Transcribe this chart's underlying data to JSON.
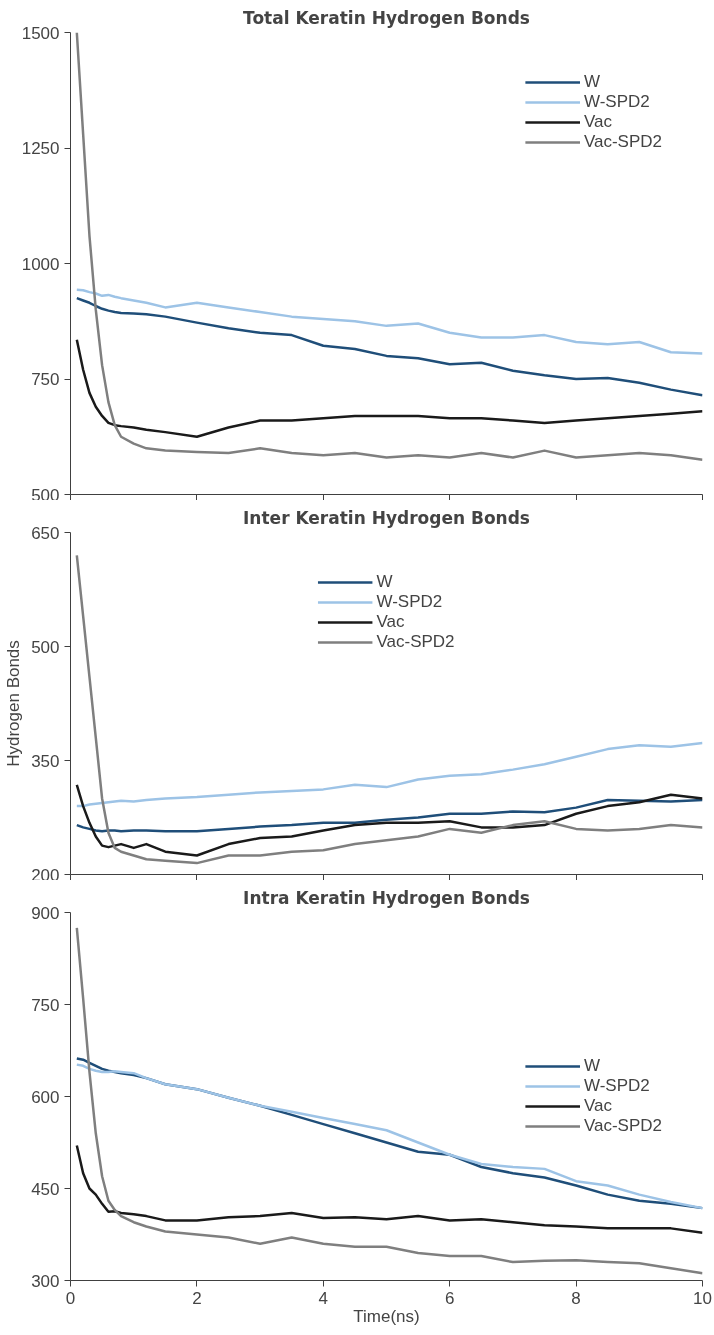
{
  "chart_data": [
    {
      "type": "line",
      "title": "Total Keratin Hydrogen Bonds",
      "x": [
        0.1,
        0.2,
        0.3,
        0.4,
        0.5,
        0.6,
        0.7,
        0.8,
        1.0,
        1.2,
        1.5,
        2,
        2.5,
        3,
        3.5,
        4,
        4.5,
        5,
        5.5,
        6,
        6.5,
        7,
        7.5,
        8,
        8.5,
        9,
        9.5,
        10
      ],
      "xlim": [
        0,
        10
      ],
      "xticks": [
        0,
        2,
        4,
        6,
        8,
        10
      ],
      "ylim": [
        500,
        1500
      ],
      "yticks": [
        500,
        750,
        1000,
        1250,
        1500
      ],
      "tick_labels": "y",
      "grid": false,
      "legend": "top right",
      "line_style": "solid",
      "marker": "none",
      "series": [
        {
          "name": "W",
          "color": "#1f4e79",
          "values": [
            925,
            920,
            915,
            908,
            902,
            898,
            895,
            893,
            892,
            890,
            885,
            872,
            860,
            850,
            845,
            822,
            815,
            800,
            795,
            782,
            785,
            768,
            758,
            750,
            752,
            742,
            727,
            715
          ]
        },
        {
          "name": "W-SPD2",
          "color": "#9dc3e6",
          "values": [
            943,
            942,
            938,
            935,
            930,
            932,
            928,
            925,
            920,
            915,
            905,
            915,
            905,
            895,
            885,
            880,
            875,
            865,
            870,
            850,
            840,
            840,
            845,
            830,
            825,
            830,
            808,
            805
          ]
        },
        {
          "name": "Vac",
          "color": "#1a1a1a",
          "values": [
            835,
            770,
            720,
            690,
            670,
            655,
            650,
            648,
            645,
            640,
            635,
            625,
            645,
            660,
            660,
            665,
            670,
            670,
            670,
            665,
            665,
            660,
            655,
            660,
            665,
            670,
            675,
            680
          ]
        },
        {
          "name": "Vac-SPD2",
          "color": "#7f7f7f",
          "values": [
            1500,
            1280,
            1060,
            900,
            780,
            700,
            650,
            625,
            610,
            600,
            595,
            592,
            590,
            600,
            590,
            585,
            590,
            580,
            585,
            580,
            590,
            580,
            595,
            580,
            585,
            590,
            585,
            575
          ]
        }
      ]
    },
    {
      "type": "line",
      "title": "Inter Keratin Hydrogen Bonds",
      "ylabel": "Hydrogen Bonds",
      "x": [
        0.1,
        0.2,
        0.3,
        0.4,
        0.5,
        0.6,
        0.7,
        0.8,
        1.0,
        1.2,
        1.5,
        2,
        2.5,
        3,
        3.5,
        4,
        4.5,
        5,
        5.5,
        6,
        6.5,
        7,
        7.5,
        8,
        8.5,
        9,
        9.5,
        10
      ],
      "xlim": [
        0,
        10
      ],
      "xticks": [
        0,
        2,
        4,
        6,
        8,
        10
      ],
      "ylim": [
        200,
        650
      ],
      "yticks": [
        200,
        350,
        500,
        650
      ],
      "tick_labels": "y",
      "grid": false,
      "legend": "top",
      "line_style": "solid",
      "marker": "none",
      "series": [
        {
          "name": "W",
          "color": "#1f4e79",
          "values": [
            265,
            262,
            260,
            258,
            257,
            258,
            258,
            257,
            258,
            258,
            257,
            257,
            260,
            263,
            265,
            268,
            268,
            272,
            275,
            280,
            280,
            283,
            282,
            288,
            298,
            297,
            296,
            298
          ]
        },
        {
          "name": "W-SPD2",
          "color": "#9dc3e6",
          "values": [
            290,
            290,
            292,
            293,
            294,
            295,
            296,
            297,
            296,
            298,
            300,
            302,
            305,
            308,
            310,
            312,
            318,
            315,
            325,
            330,
            332,
            338,
            345,
            355,
            365,
            370,
            368,
            373
          ]
        },
        {
          "name": "Vac",
          "color": "#1a1a1a",
          "values": [
            318,
            290,
            268,
            250,
            238,
            236,
            238,
            240,
            235,
            240,
            230,
            225,
            240,
            248,
            250,
            258,
            265,
            268,
            268,
            270,
            262,
            262,
            265,
            280,
            290,
            295,
            305,
            300
          ]
        },
        {
          "name": "Vac-SPD2",
          "color": "#7f7f7f",
          "values": [
            620,
            540,
            460,
            380,
            300,
            255,
            235,
            230,
            225,
            220,
            218,
            215,
            225,
            225,
            230,
            232,
            240,
            245,
            250,
            260,
            255,
            265,
            270,
            260,
            258,
            260,
            265,
            262
          ]
        }
      ]
    },
    {
      "type": "line",
      "title": "Intra Keratin Hydrogen Bonds",
      "xlabel": "Time(ns)",
      "x": [
        0.1,
        0.2,
        0.3,
        0.4,
        0.5,
        0.6,
        0.7,
        0.8,
        1.0,
        1.2,
        1.5,
        2,
        2.5,
        3,
        3.5,
        4,
        4.5,
        5,
        5.5,
        6,
        6.5,
        7,
        7.5,
        8,
        8.5,
        9,
        9.5,
        10
      ],
      "xlim": [
        0,
        10
      ],
      "xticks": [
        0,
        2,
        4,
        6,
        8,
        10
      ],
      "ylim": [
        300,
        900
      ],
      "yticks": [
        300,
        450,
        600,
        750,
        900
      ],
      "grid": false,
      "legend": "right",
      "line_style": "solid",
      "marker": "none",
      "series": [
        {
          "name": "W",
          "color": "#1f4e79",
          "values": [
            662,
            660,
            655,
            650,
            645,
            642,
            640,
            638,
            635,
            630,
            620,
            612,
            598,
            585,
            570,
            555,
            540,
            525,
            510,
            505,
            485,
            475,
            468,
            455,
            440,
            430,
            425,
            418
          ]
        },
        {
          "name": "W-SPD2",
          "color": "#9dc3e6",
          "values": [
            652,
            650,
            645,
            642,
            640,
            640,
            641,
            640,
            638,
            630,
            620,
            612,
            598,
            585,
            575,
            565,
            555,
            545,
            525,
            505,
            490,
            485,
            482,
            462,
            455,
            440,
            428,
            418
          ]
        },
        {
          "name": "Vac",
          "color": "#1a1a1a",
          "values": [
            520,
            475,
            450,
            440,
            425,
            412,
            413,
            410,
            408,
            405,
            398,
            398,
            403,
            405,
            410,
            402,
            403,
            400,
            405,
            398,
            400,
            395,
            390,
            388,
            385,
            385,
            385,
            378
          ]
        },
        {
          "name": "Vac-SPD2",
          "color": "#7f7f7f",
          "values": [
            875,
            760,
            640,
            540,
            470,
            430,
            415,
            405,
            395,
            388,
            380,
            375,
            370,
            360,
            370,
            360,
            355,
            355,
            345,
            340,
            340,
            330,
            332,
            333,
            330,
            328,
            320,
            312
          ]
        }
      ]
    }
  ]
}
